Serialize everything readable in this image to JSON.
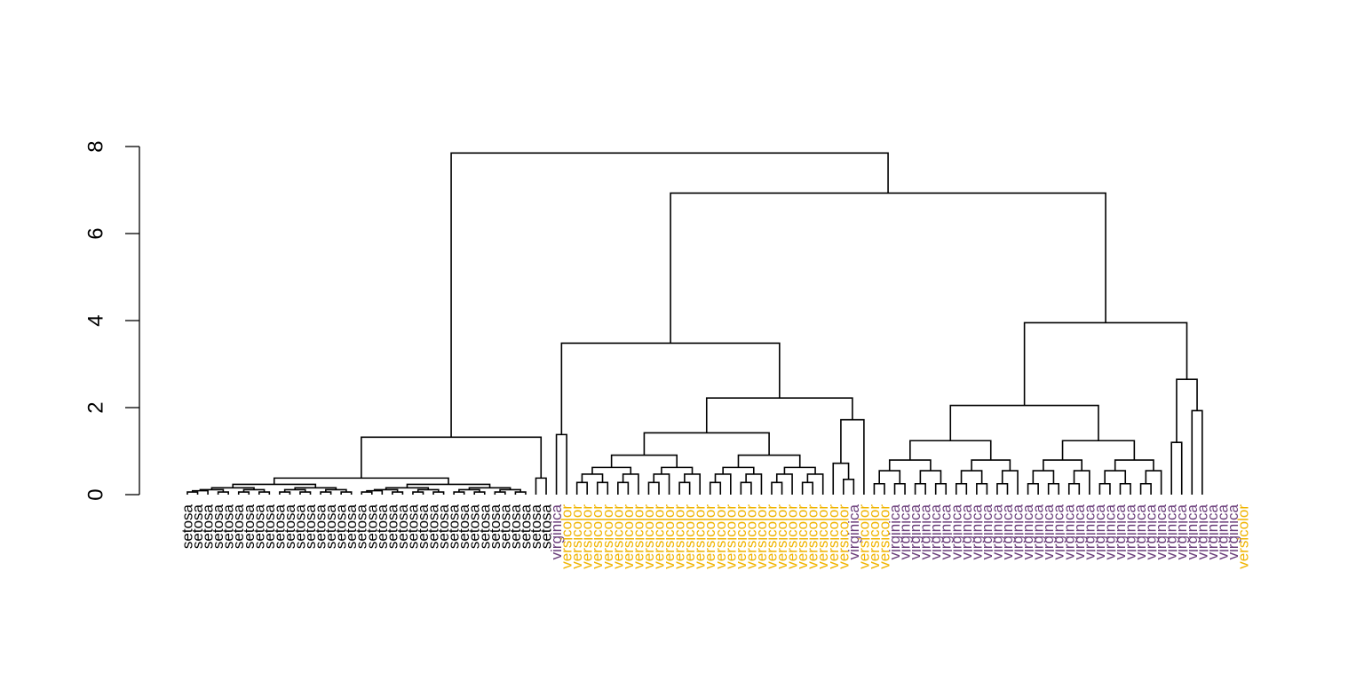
{
  "chart_data": {
    "type": "dendrogram",
    "title": "",
    "xlabel": "",
    "ylabel": "",
    "ylim": [
      0,
      8
    ],
    "y_ticks": [
      "0",
      "2",
      "4",
      "6",
      "8"
    ],
    "grid": false,
    "legend": "none",
    "colors": {
      "setosa": "#000000",
      "versicolor": "#f0b400",
      "virginica": "#6a3d7a",
      "branches": "#000000"
    },
    "merge_heights": {
      "root": 7.85,
      "setosa_cluster": 1.32,
      "versicolor_virginica_cluster": 6.93,
      "left_group": 3.48,
      "right_group": 3.95,
      "right_core": 2.05,
      "right_outliers": 2.65
    },
    "leaves": [
      "setosa",
      "setosa",
      "setosa",
      "setosa",
      "setosa",
      "setosa",
      "setosa",
      "setosa",
      "setosa",
      "setosa",
      "setosa",
      "setosa",
      "setosa",
      "setosa",
      "setosa",
      "setosa",
      "setosa",
      "setosa",
      "setosa",
      "setosa",
      "setosa",
      "setosa",
      "setosa",
      "setosa",
      "setosa",
      "setosa",
      "setosa",
      "setosa",
      "setosa",
      "setosa",
      "setosa",
      "setosa",
      "setosa",
      "setosa",
      "setosa",
      "setosa",
      "virginica",
      "versicolor",
      "versicolor",
      "versicolor",
      "versicolor",
      "versicolor",
      "versicolor",
      "versicolor",
      "versicolor",
      "versicolor",
      "versicolor",
      "versicolor",
      "versicolor",
      "versicolor",
      "versicolor",
      "versicolor",
      "versicolor",
      "versicolor",
      "versicolor",
      "versicolor",
      "versicolor",
      "versicolor",
      "versicolor",
      "versicolor",
      "versicolor",
      "versicolor",
      "versicolor",
      "versicolor",
      "versicolor",
      "virginica",
      "versicolor",
      "versicolor",
      "versicolor",
      "virginica",
      "virginica",
      "virginica",
      "virginica",
      "virginica",
      "virginica",
      "virginica",
      "virginica",
      "virginica",
      "virginica",
      "virginica",
      "virginica",
      "virginica",
      "virginica",
      "virginica",
      "virginica",
      "virginica",
      "virginica",
      "virginica",
      "virginica",
      "virginica",
      "virginica",
      "virginica",
      "virginica",
      "virginica",
      "virginica",
      "virginica",
      "virginica",
      "virginica",
      "virginica",
      "virginica",
      "virginica",
      "virginica",
      "virginica",
      "versicolor"
    ]
  }
}
